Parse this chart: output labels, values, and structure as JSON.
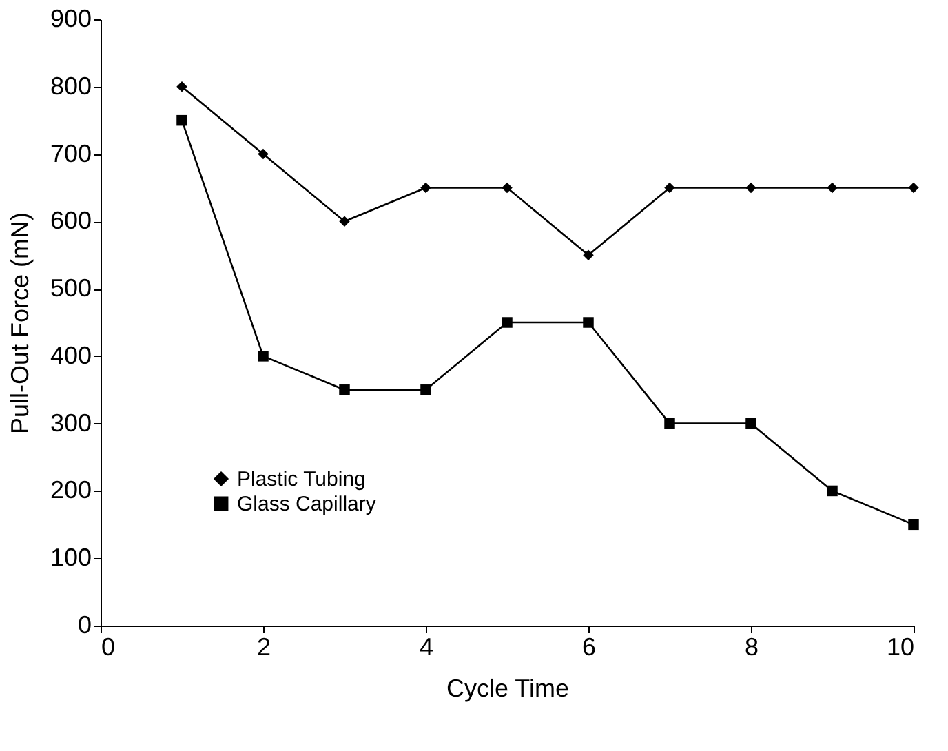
{
  "chart_data": {
    "type": "line",
    "xlabel": "Cycle Time",
    "ylabel": "Pull-Out Force (mN)",
    "x": [
      1,
      2,
      3,
      4,
      5,
      6,
      7,
      8,
      9,
      10
    ],
    "series": [
      {
        "name": "Plastic Tubing",
        "color": "#000000",
        "marker": "diamond",
        "values": [
          800,
          700,
          600,
          650,
          650,
          550,
          650,
          650,
          650,
          650
        ]
      },
      {
        "name": "Glass Capillary",
        "color": "#000000",
        "marker": "square",
        "values": [
          750,
          400,
          350,
          350,
          450,
          450,
          300,
          300,
          200,
          150
        ]
      }
    ],
    "xlim": [
      0,
      10
    ],
    "xticks": [
      0,
      2,
      4,
      6,
      8,
      10
    ],
    "ylim": [
      0,
      900
    ],
    "yticks": [
      0,
      100,
      200,
      300,
      400,
      500,
      600,
      700,
      800,
      900
    ],
    "grid": false,
    "legend": "bottom left",
    "line_style": "solid"
  }
}
